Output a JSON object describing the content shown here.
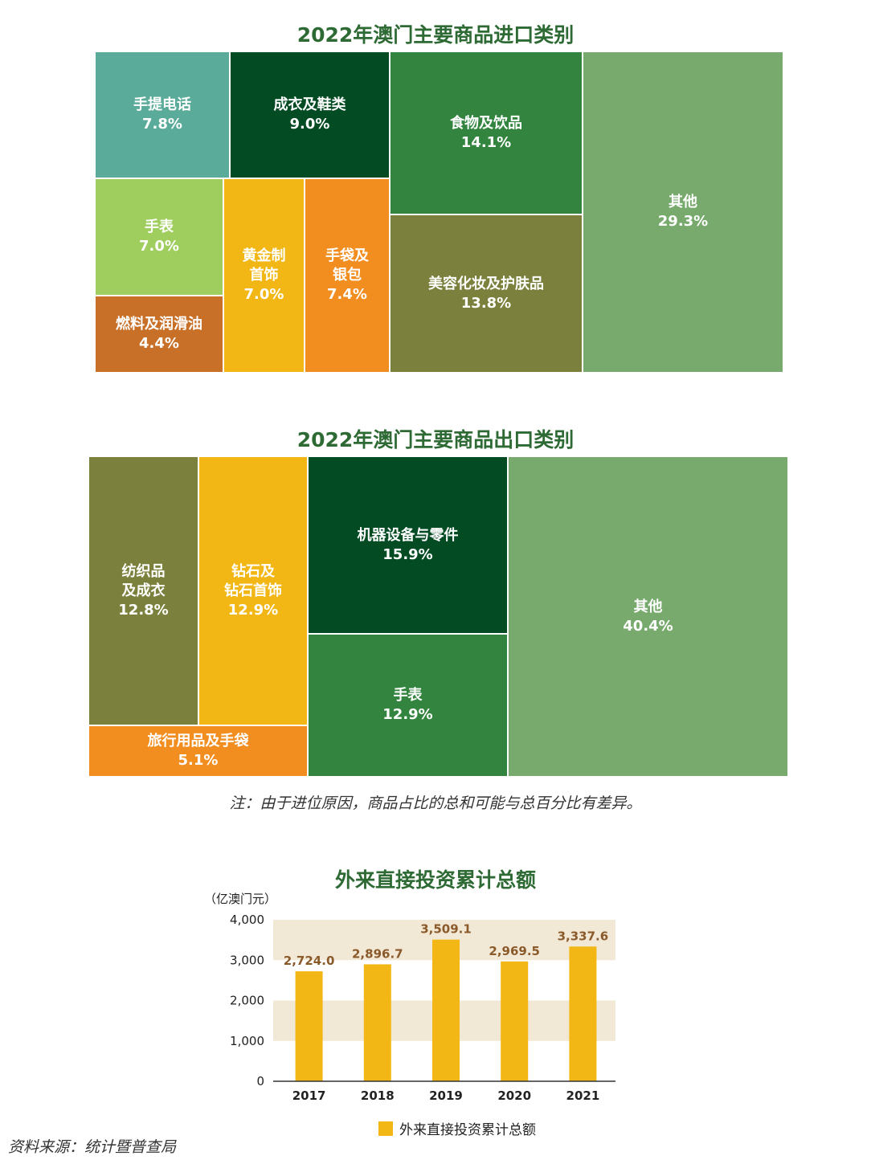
{
  "import_chart": {
    "title": "2022年澳门主要商品进口类别",
    "cells": [
      {
        "label": "手提电话",
        "value": "7.8%",
        "color": "#5aab99"
      },
      {
        "label": "成衣及鞋类",
        "value": "9.0%",
        "color": "#034c23"
      },
      {
        "label": "食物及饮品",
        "value": "14.1%",
        "color": "#33843f"
      },
      {
        "label": "其他",
        "value": "29.3%",
        "color": "#78aa6e"
      },
      {
        "label": "手表",
        "value": "7.0%",
        "color": "#9fcd5e"
      },
      {
        "label": "黄金制\n首饰",
        "value": "7.0%",
        "color": "#f2b714"
      },
      {
        "label": "手袋及\n银包",
        "value": "7.4%",
        "color": "#f28e20"
      },
      {
        "label": "美容化妆及护肤品",
        "value": "13.8%",
        "color": "#7b813c"
      },
      {
        "label": "燃料及润滑油",
        "value": "4.4%",
        "color": "#c87028"
      }
    ]
  },
  "export_chart": {
    "title": "2022年澳门主要商品出口类别",
    "cells": [
      {
        "label": "纺织品\n及成衣",
        "value": "12.8%",
        "color": "#7b813c"
      },
      {
        "label": "钻石及\n钻石首饰",
        "value": "12.9%",
        "color": "#f2b714"
      },
      {
        "label": "机器设备与零件",
        "value": "15.9%",
        "color": "#034c23"
      },
      {
        "label": "其他",
        "value": "40.4%",
        "color": "#78aa6e"
      },
      {
        "label": "手表",
        "value": "12.9%",
        "color": "#33843f"
      },
      {
        "label": "旅行用品及手袋",
        "value": "5.1%",
        "color": "#f28e20"
      }
    ]
  },
  "note": "注：由于进位原因，商品占比的总和可能与总百分比有差异。",
  "fdi_chart": {
    "title": "外来直接投资累计总额",
    "unit_label": "（亿澳门元）",
    "legend": "外来直接投资累计总额",
    "colors": {
      "bar": "#f2b714",
      "band": "#f2e8d6",
      "value_label": "#8a5a2b",
      "title": "#2e6a34"
    }
  },
  "chart_data": [
    {
      "type": "treemap",
      "title": "2022年澳门主要商品进口类别",
      "categories": [
        "手提电话",
        "成衣及鞋类",
        "食物及饮品",
        "其他",
        "手表",
        "黄金制首饰",
        "手袋及银包",
        "美容化妆及护肤品",
        "燃料及润滑油"
      ],
      "values": [
        7.8,
        9.0,
        14.1,
        29.3,
        7.0,
        7.0,
        7.4,
        13.8,
        4.4
      ]
    },
    {
      "type": "treemap",
      "title": "2022年澳门主要商品出口类别",
      "categories": [
        "纺织品及成衣",
        "钻石及钻石首饰",
        "机器设备与零件",
        "其他",
        "手表",
        "旅行用品及手袋"
      ],
      "values": [
        12.8,
        12.9,
        15.9,
        40.4,
        12.9,
        5.1
      ]
    },
    {
      "type": "bar",
      "title": "外来直接投资累计总额",
      "ylabel": "（亿澳门元）",
      "categories": [
        "2017",
        "2018",
        "2019",
        "2020",
        "2021"
      ],
      "series": [
        {
          "name": "外来直接投资累计总额",
          "values": [
            2724.0,
            2896.7,
            3509.1,
            2969.5,
            3337.6
          ]
        }
      ],
      "value_labels": [
        "2,724.0",
        "2,896.7",
        "3,509.1",
        "2,969.5",
        "3,337.6"
      ],
      "yticks": [
        "0",
        "1,000",
        "2,000",
        "3,000",
        "4,000"
      ],
      "ylim": [
        0,
        4000
      ],
      "grid": "alternating bands",
      "legend": "bottom"
    }
  ],
  "source": "资料来源：统计暨普查局"
}
